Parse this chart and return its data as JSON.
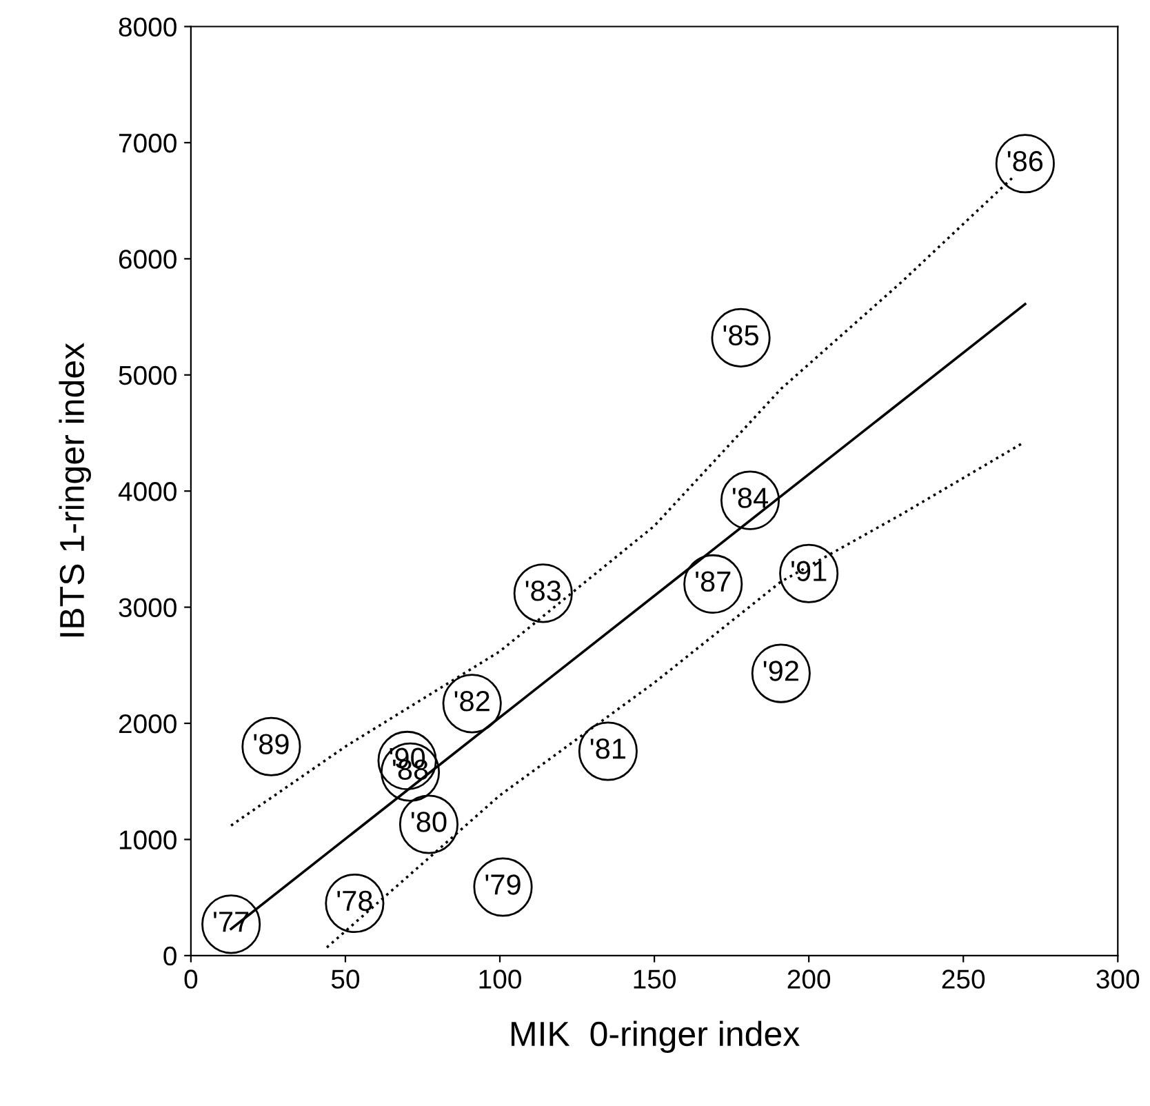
{
  "chart_data": {
    "type": "scatter",
    "xlabel": "MIK  0-ringer index",
    "ylabel": "IBTS 1-ringer index",
    "xlim": [
      0,
      300
    ],
    "ylim": [
      0,
      8000
    ],
    "xticks": [
      0,
      50,
      100,
      150,
      200,
      250,
      300
    ],
    "yticks": [
      0,
      1000,
      2000,
      3000,
      4000,
      5000,
      6000,
      7000,
      8000
    ],
    "grid": false,
    "legend": false,
    "annotations": [
      {
        "text": "'77",
        "x": 13,
        "y": 270
      },
      {
        "text": "'78",
        "x": 53,
        "y": 450
      },
      {
        "text": "'79",
        "x": 101,
        "y": 590
      },
      {
        "text": "'80",
        "x": 77,
        "y": 1130
      },
      {
        "text": "'81",
        "x": 135,
        "y": 1760
      },
      {
        "text": "'82",
        "x": 91,
        "y": 2170
      },
      {
        "text": "'83",
        "x": 114,
        "y": 3120
      },
      {
        "text": "'84",
        "x": 181,
        "y": 3920
      },
      {
        "text": "'85",
        "x": 178,
        "y": 5320
      },
      {
        "text": "'86",
        "x": 270,
        "y": 6820
      },
      {
        "text": "'87",
        "x": 169,
        "y": 3200
      },
      {
        "text": "'88",
        "x": 71,
        "y": 1580
      },
      {
        "text": "'89",
        "x": 26,
        "y": 1800
      },
      {
        "text": "'90",
        "x": 70,
        "y": 1680
      },
      {
        "text": "'91",
        "x": 200,
        "y": 3290
      },
      {
        "text": "'92",
        "x": 191,
        "y": 2430
      }
    ],
    "series": [
      {
        "color": "#000000",
        "marker": "circle",
        "x": [
          13,
          53,
          101,
          77,
          135,
          91,
          114,
          181,
          178,
          270,
          169,
          71,
          26,
          70,
          200,
          191
        ],
        "values": [
          270,
          450,
          590,
          1130,
          1760,
          2170,
          3120,
          3920,
          5320,
          6820,
          3200,
          1580,
          1800,
          1680,
          3290,
          2430
        ]
      },
      {
        "type": "line",
        "color": "#000000",
        "line_style": "solid",
        "x": [
          13,
          270
        ],
        "values": [
          230,
          5610
        ]
      },
      {
        "type": "line",
        "color": "#000000",
        "line_style": "dotted",
        "x": [
          13,
          50,
          100,
          150,
          191,
          230,
          266
        ],
        "values": [
          1120,
          1800,
          2620,
          3700,
          4880,
          5800,
          6700
        ]
      },
      {
        "type": "line",
        "color": "#000000",
        "line_style": "dotted",
        "x": [
          44,
          77,
          100,
          150,
          191,
          230,
          269
        ],
        "values": [
          70,
          840,
          1380,
          2350,
          3220,
          3800,
          4410
        ]
      }
    ]
  }
}
